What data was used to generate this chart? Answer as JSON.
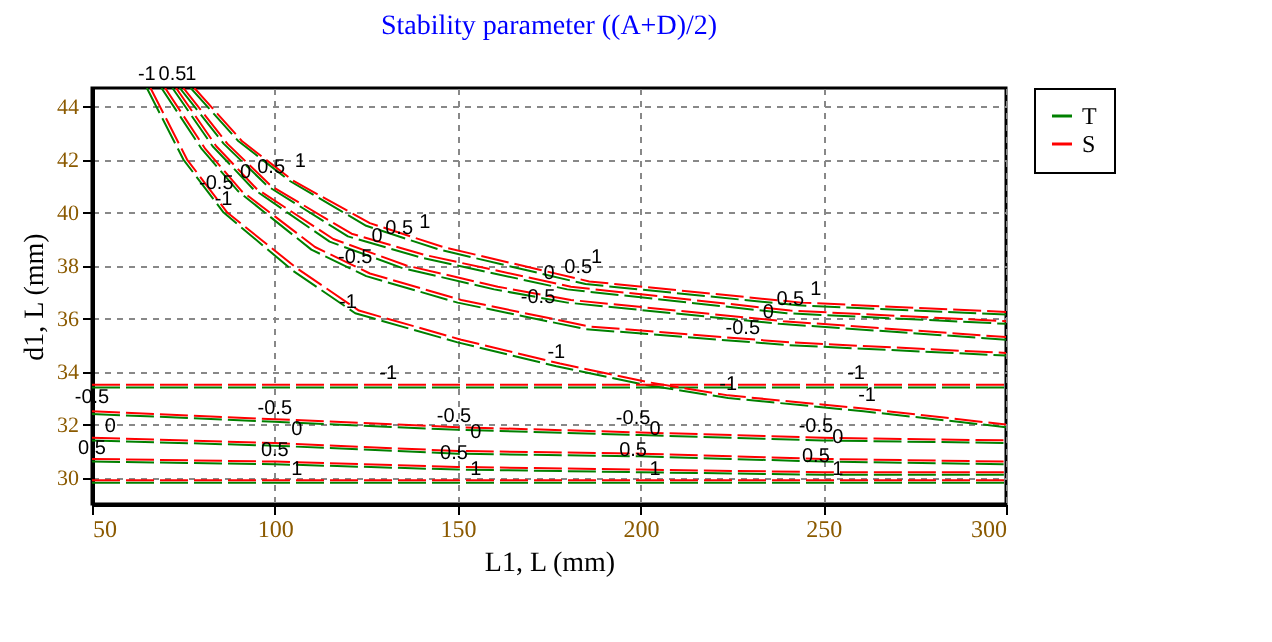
{
  "chart_data": {
    "type": "line",
    "title": "Stability parameter ((A+D)/2)",
    "xlabel": "L1, L (mm)",
    "ylabel": "d1, L (mm)",
    "xlim": [
      50,
      300
    ],
    "xticks": [
      50,
      100,
      150,
      200,
      250,
      300
    ],
    "ylim": [
      29,
      44.7
    ],
    "yticks": [
      30,
      32,
      34,
      36,
      38,
      40,
      42,
      44
    ],
    "grid": true,
    "legend": "top right",
    "line_style": "dashed",
    "series": [
      {
        "name": "T",
        "color": "#008000",
        "x": [
          65,
          75,
          86,
          105,
          122,
          150,
          177,
          201,
          224,
          261,
          300
        ],
        "values": [
          44.7,
          42,
          40,
          37.8,
          36.2,
          35.1,
          34.2,
          33.5,
          33,
          32.5,
          31.9
        ]
      },
      {
        "color": "#008000",
        "x": [
          69,
          80,
          90,
          110,
          125,
          150,
          185,
          240,
          300
        ],
        "values": [
          44.7,
          42.4,
          40.8,
          38.6,
          37.6,
          36.6,
          35.6,
          35,
          34.6
        ]
      },
      {
        "color": "#008000",
        "x": [
          72,
          83,
          94,
          115,
          135,
          160,
          180,
          238,
          300
        ],
        "values": [
          44.7,
          42.5,
          40.9,
          38.9,
          37.9,
          37.1,
          36.6,
          35.8,
          35.2
        ]
      },
      {
        "color": "#008000",
        "x": [
          74,
          86,
          98,
          120,
          140,
          180,
          240,
          300
        ],
        "values": [
          44.7,
          42.6,
          41,
          39.1,
          38.3,
          37.1,
          36.2,
          35.8
        ]
      },
      {
        "color": "#008000",
        "x": [
          77,
          90,
          104,
          125,
          145,
          185,
          243,
          300
        ],
        "values": [
          44.7,
          42.7,
          41.2,
          39.5,
          38.6,
          37.3,
          36.5,
          36.15
        ]
      },
      {
        "color": "#008000",
        "x": [
          50,
          100,
          150,
          200,
          250,
          300
        ],
        "values": [
          33.4,
          33.4,
          33.4,
          33.4,
          33.4,
          33.4
        ]
      },
      {
        "color": "#008000",
        "x": [
          50,
          100,
          150,
          200,
          250,
          300
        ],
        "values": [
          32.4,
          32.1,
          31.8,
          31.6,
          31.4,
          31.3
        ]
      },
      {
        "color": "#008000",
        "x": [
          50,
          100,
          150,
          200,
          250,
          300
        ],
        "values": [
          31.4,
          31.2,
          30.9,
          30.8,
          30.6,
          30.5
        ]
      },
      {
        "color": "#008000",
        "x": [
          50,
          100,
          150,
          200,
          250,
          300
        ],
        "values": [
          30.6,
          30.5,
          30.3,
          30.2,
          30.1,
          30.1
        ]
      },
      {
        "color": "#008000",
        "x": [
          50,
          100,
          150,
          200,
          250,
          300
        ],
        "values": [
          29.8,
          29.8,
          29.8,
          29.8,
          29.8,
          29.8
        ]
      },
      {
        "name": "S",
        "color": "#ff0000",
        "x": [
          66,
          76,
          87,
          106,
          123,
          151,
          178,
          202,
          224,
          261,
          300
        ],
        "values": [
          44.7,
          42,
          40,
          37.9,
          36.3,
          35.2,
          34.3,
          33.6,
          33.1,
          32.6,
          32
        ]
      },
      {
        "color": "#ff0000",
        "x": [
          70,
          81,
          91,
          111,
          126,
          151,
          186,
          241,
          300
        ],
        "values": [
          44.7,
          42.4,
          40.8,
          38.7,
          37.7,
          36.7,
          35.7,
          35.1,
          34.7
        ]
      },
      {
        "color": "#ff0000",
        "x": [
          73,
          84,
          95,
          116,
          136,
          161,
          181,
          239,
          300
        ],
        "values": [
          44.7,
          42.5,
          40.9,
          39,
          38,
          37.2,
          36.7,
          35.9,
          35.3
        ]
      },
      {
        "color": "#ff0000",
        "x": [
          75,
          87,
          99,
          121,
          141,
          181,
          241,
          300
        ],
        "values": [
          44.7,
          42.6,
          41,
          39.2,
          38.4,
          37.2,
          36.3,
          35.9
        ]
      },
      {
        "color": "#ff0000",
        "x": [
          78,
          91,
          105,
          126,
          146,
          186,
          244,
          300
        ],
        "values": [
          44.7,
          42.7,
          41.2,
          39.6,
          38.7,
          37.4,
          36.6,
          36.25
        ]
      },
      {
        "color": "#ff0000",
        "x": [
          50,
          100,
          150,
          200,
          250,
          300
        ],
        "values": [
          33.5,
          33.5,
          33.5,
          33.5,
          33.5,
          33.5
        ]
      },
      {
        "color": "#ff0000",
        "x": [
          50,
          100,
          150,
          200,
          250,
          300
        ],
        "values": [
          32.5,
          32.2,
          31.9,
          31.7,
          31.5,
          31.4
        ]
      },
      {
        "color": "#ff0000",
        "x": [
          50,
          100,
          150,
          200,
          250,
          300
        ],
        "values": [
          31.5,
          31.3,
          31,
          30.9,
          30.7,
          30.6
        ]
      },
      {
        "color": "#ff0000",
        "x": [
          50,
          100,
          150,
          200,
          250,
          300
        ],
        "values": [
          30.7,
          30.6,
          30.4,
          30.3,
          30.2,
          30.2
        ]
      },
      {
        "color": "#ff0000",
        "x": [
          50,
          100,
          150,
          200,
          250,
          300
        ],
        "values": [
          29.9,
          29.9,
          29.9,
          29.9,
          29.9,
          29.9
        ]
      }
    ],
    "annotations": [
      {
        "text": "-1",
        "x": 65,
        "y": 44.7
      },
      {
        "text": "0.5",
        "x": 72,
        "y": 44.7
      },
      {
        "text": "1",
        "x": 77,
        "y": 44.7
      },
      {
        "text": "-0.5",
        "x": 84,
        "y": 40.6
      },
      {
        "text": "0",
        "x": 92,
        "y": 41
      },
      {
        "text": "0.5",
        "x": 99,
        "y": 41.2
      },
      {
        "text": "1",
        "x": 107,
        "y": 41.4
      },
      {
        "text": "-1",
        "x": 86,
        "y": 40
      },
      {
        "text": "-0.5",
        "x": 122,
        "y": 37.8
      },
      {
        "text": "0",
        "x": 128,
        "y": 38.6
      },
      {
        "text": "0.5",
        "x": 134,
        "y": 38.9
      },
      {
        "text": "1",
        "x": 141,
        "y": 39.1
      },
      {
        "text": "-1",
        "x": 120,
        "y": 36.1
      },
      {
        "text": "-0.5",
        "x": 172,
        "y": 36.3
      },
      {
        "text": "0",
        "x": 175,
        "y": 37.2
      },
      {
        "text": "0.5",
        "x": 183,
        "y": 37.4
      },
      {
        "text": "1",
        "x": 188,
        "y": 37.8
      },
      {
        "text": "-1",
        "x": 177,
        "y": 34.2
      },
      {
        "text": "-0.5",
        "x": 228,
        "y": 35.1
      },
      {
        "text": "0",
        "x": 235,
        "y": 35.7
      },
      {
        "text": "0.5",
        "x": 241,
        "y": 36.2
      },
      {
        "text": "1",
        "x": 248,
        "y": 36.6
      },
      {
        "text": "-1",
        "x": 131,
        "y": 33.4
      },
      {
        "text": "-1",
        "x": 224,
        "y": 33
      },
      {
        "text": "-1",
        "x": 259,
        "y": 33.4
      },
      {
        "text": "-1",
        "x": 262,
        "y": 32.6
      },
      {
        "text": "-0.5",
        "x": 50,
        "y": 32.5
      },
      {
        "text": "0",
        "x": 55,
        "y": 31.4
      },
      {
        "text": "0.5",
        "x": 50,
        "y": 30.6
      },
      {
        "text": "-0.5",
        "x": 100,
        "y": 32.1
      },
      {
        "text": "0",
        "x": 106,
        "y": 31.3
      },
      {
        "text": "0.5",
        "x": 100,
        "y": 30.5
      },
      {
        "text": "1",
        "x": 106,
        "y": 29.8
      },
      {
        "text": "-0.5",
        "x": 149,
        "y": 31.8
      },
      {
        "text": "0",
        "x": 155,
        "y": 31.2
      },
      {
        "text": "0.5",
        "x": 149,
        "y": 30.4
      },
      {
        "text": "1",
        "x": 155,
        "y": 29.8
      },
      {
        "text": "-0.5",
        "x": 198,
        "y": 31.7
      },
      {
        "text": "0",
        "x": 204,
        "y": 31.3
      },
      {
        "text": "0.5",
        "x": 198,
        "y": 30.5
      },
      {
        "text": "1",
        "x": 204,
        "y": 29.8
      },
      {
        "text": "-0.5",
        "x": 248,
        "y": 31.4
      },
      {
        "text": "0",
        "x": 254,
        "y": 31
      },
      {
        "text": "0.5",
        "x": 248,
        "y": 30.3
      },
      {
        "text": "1",
        "x": 254,
        "y": 29.8
      }
    ]
  }
}
